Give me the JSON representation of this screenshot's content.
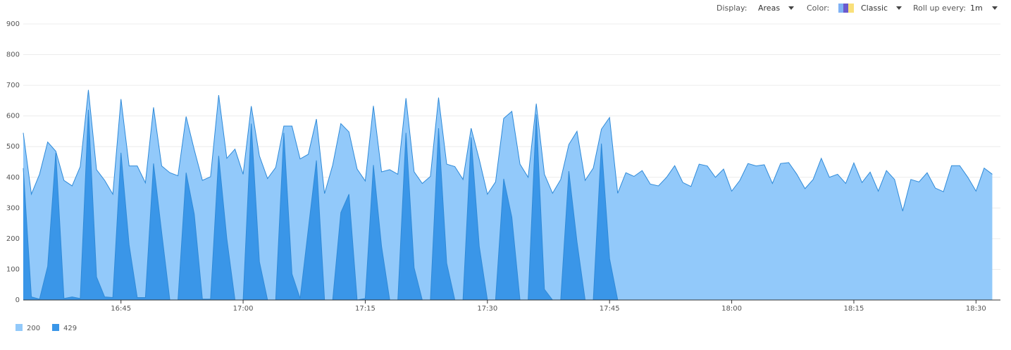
{
  "controls": [
    {
      "label": "Display:",
      "value": "Areas"
    },
    {
      "label": "Color:",
      "value": "Classic"
    },
    {
      "label": "Roll up every:",
      "value": "1m"
    }
  ],
  "chart_data": {
    "type": "area",
    "stacked": true,
    "grid": true,
    "x": [
      "16:33",
      "16:34",
      "16:35",
      "16:36",
      "16:37",
      "16:38",
      "16:39",
      "16:40",
      "16:41",
      "16:42",
      "16:43",
      "16:44",
      "16:45",
      "16:46",
      "16:47",
      "16:48",
      "16:49",
      "16:50",
      "16:51",
      "16:52",
      "16:53",
      "16:54",
      "16:55",
      "16:56",
      "16:57",
      "16:58",
      "16:59",
      "17:00",
      "17:01",
      "17:02",
      "17:03",
      "17:04",
      "17:05",
      "17:06",
      "17:07",
      "17:08",
      "17:09",
      "17:10",
      "17:11",
      "17:12",
      "17:13",
      "17:14",
      "17:15",
      "17:16",
      "17:17",
      "17:18",
      "17:19",
      "17:20",
      "17:21",
      "17:22",
      "17:23",
      "17:24",
      "17:25",
      "17:26",
      "17:27",
      "17:28",
      "17:29",
      "17:30",
      "17:31",
      "17:32",
      "17:33",
      "17:34",
      "17:35",
      "17:36",
      "17:37",
      "17:38",
      "17:39",
      "17:40",
      "17:41",
      "17:42",
      "17:43",
      "17:44",
      "17:45",
      "17:46",
      "17:47",
      "17:48",
      "17:49",
      "17:50",
      "17:51",
      "17:52",
      "17:53",
      "17:54",
      "17:55",
      "17:56",
      "17:57",
      "17:58",
      "17:59",
      "18:00",
      "18:01",
      "18:02",
      "18:03",
      "18:04",
      "18:05",
      "18:06",
      "18:07",
      "18:08",
      "18:09",
      "18:10",
      "18:11",
      "18:12",
      "18:13",
      "18:14",
      "18:15",
      "18:16",
      "18:17",
      "18:18",
      "18:19",
      "18:20",
      "18:21",
      "18:22",
      "18:23",
      "18:24",
      "18:25",
      "18:26",
      "18:27",
      "18:28",
      "18:29",
      "18:30",
      "18:31",
      "18:32"
    ],
    "xlim": [
      "16:33",
      "18:33"
    ],
    "xticks": [
      "16:45",
      "17:00",
      "17:15",
      "17:30",
      "17:45",
      "18:00",
      "18:15",
      "18:30"
    ],
    "ylim": [
      0,
      900
    ],
    "yticks": [
      0,
      100,
      200,
      300,
      400,
      500,
      600,
      700,
      800,
      900
    ],
    "series": [
      {
        "name": "200",
        "color": "#92c9fa",
        "values": [
          115,
          335,
          407,
          405,
          5,
          385,
          362,
          430,
          65,
          350,
          380,
          337,
          175,
          257,
          429,
          374,
          183,
          217,
          415,
          405,
          183,
          210,
          387,
          399,
          198,
          262,
          492,
          410,
          57,
          345,
          396,
          432,
          22,
          482,
          455,
          245,
          135,
          347,
          440,
          290,
          203,
          427,
          383,
          193,
          243,
          425,
          410,
          113,
          313,
          380,
          403,
          100,
          323,
          435,
          393,
          30,
          283,
          345,
          385,
          197,
          345,
          443,
          400,
          35,
          375,
          348,
          393,
          87,
          360,
          390,
          430,
          47,
          460,
          348,
          415,
          403,
          422,
          378,
          372,
          400,
          438,
          383,
          370,
          443,
          437,
          400,
          427,
          355,
          390,
          445,
          437,
          441,
          380,
          445,
          448,
          410,
          363,
          393,
          462,
          400,
          410,
          380,
          447,
          383,
          417,
          355,
          422,
          393,
          290,
          393,
          385,
          415,
          365,
          353,
          438,
          438,
          400,
          355,
          430,
          410
        ]
      },
      {
        "name": "429",
        "color": "#3a96e8",
        "values": [
          430,
          10,
          3,
          110,
          480,
          5,
          10,
          5,
          620,
          75,
          10,
          8,
          480,
          180,
          8,
          8,
          445,
          220,
          0,
          0,
          415,
          280,
          3,
          3,
          470,
          200,
          0,
          0,
          575,
          125,
          0,
          0,
          545,
          85,
          5,
          230,
          455,
          0,
          0,
          285,
          345,
          0,
          5,
          440,
          175,
          0,
          0,
          545,
          105,
          0,
          0,
          560,
          120,
          0,
          0,
          530,
          175,
          0,
          0,
          395,
          270,
          0,
          0,
          605,
          35,
          0,
          0,
          420,
          190,
          0,
          0,
          510,
          135,
          0,
          0,
          0,
          0,
          0,
          0,
          0,
          0,
          0,
          0,
          0,
          0,
          0,
          0,
          0,
          0,
          0,
          0,
          0,
          0,
          0,
          0,
          0,
          0,
          0,
          0,
          0,
          0,
          0,
          0,
          0,
          0,
          0,
          0,
          0,
          0,
          0,
          0,
          0,
          0,
          0,
          0,
          0,
          0,
          0,
          0,
          0
        ]
      }
    ]
  }
}
